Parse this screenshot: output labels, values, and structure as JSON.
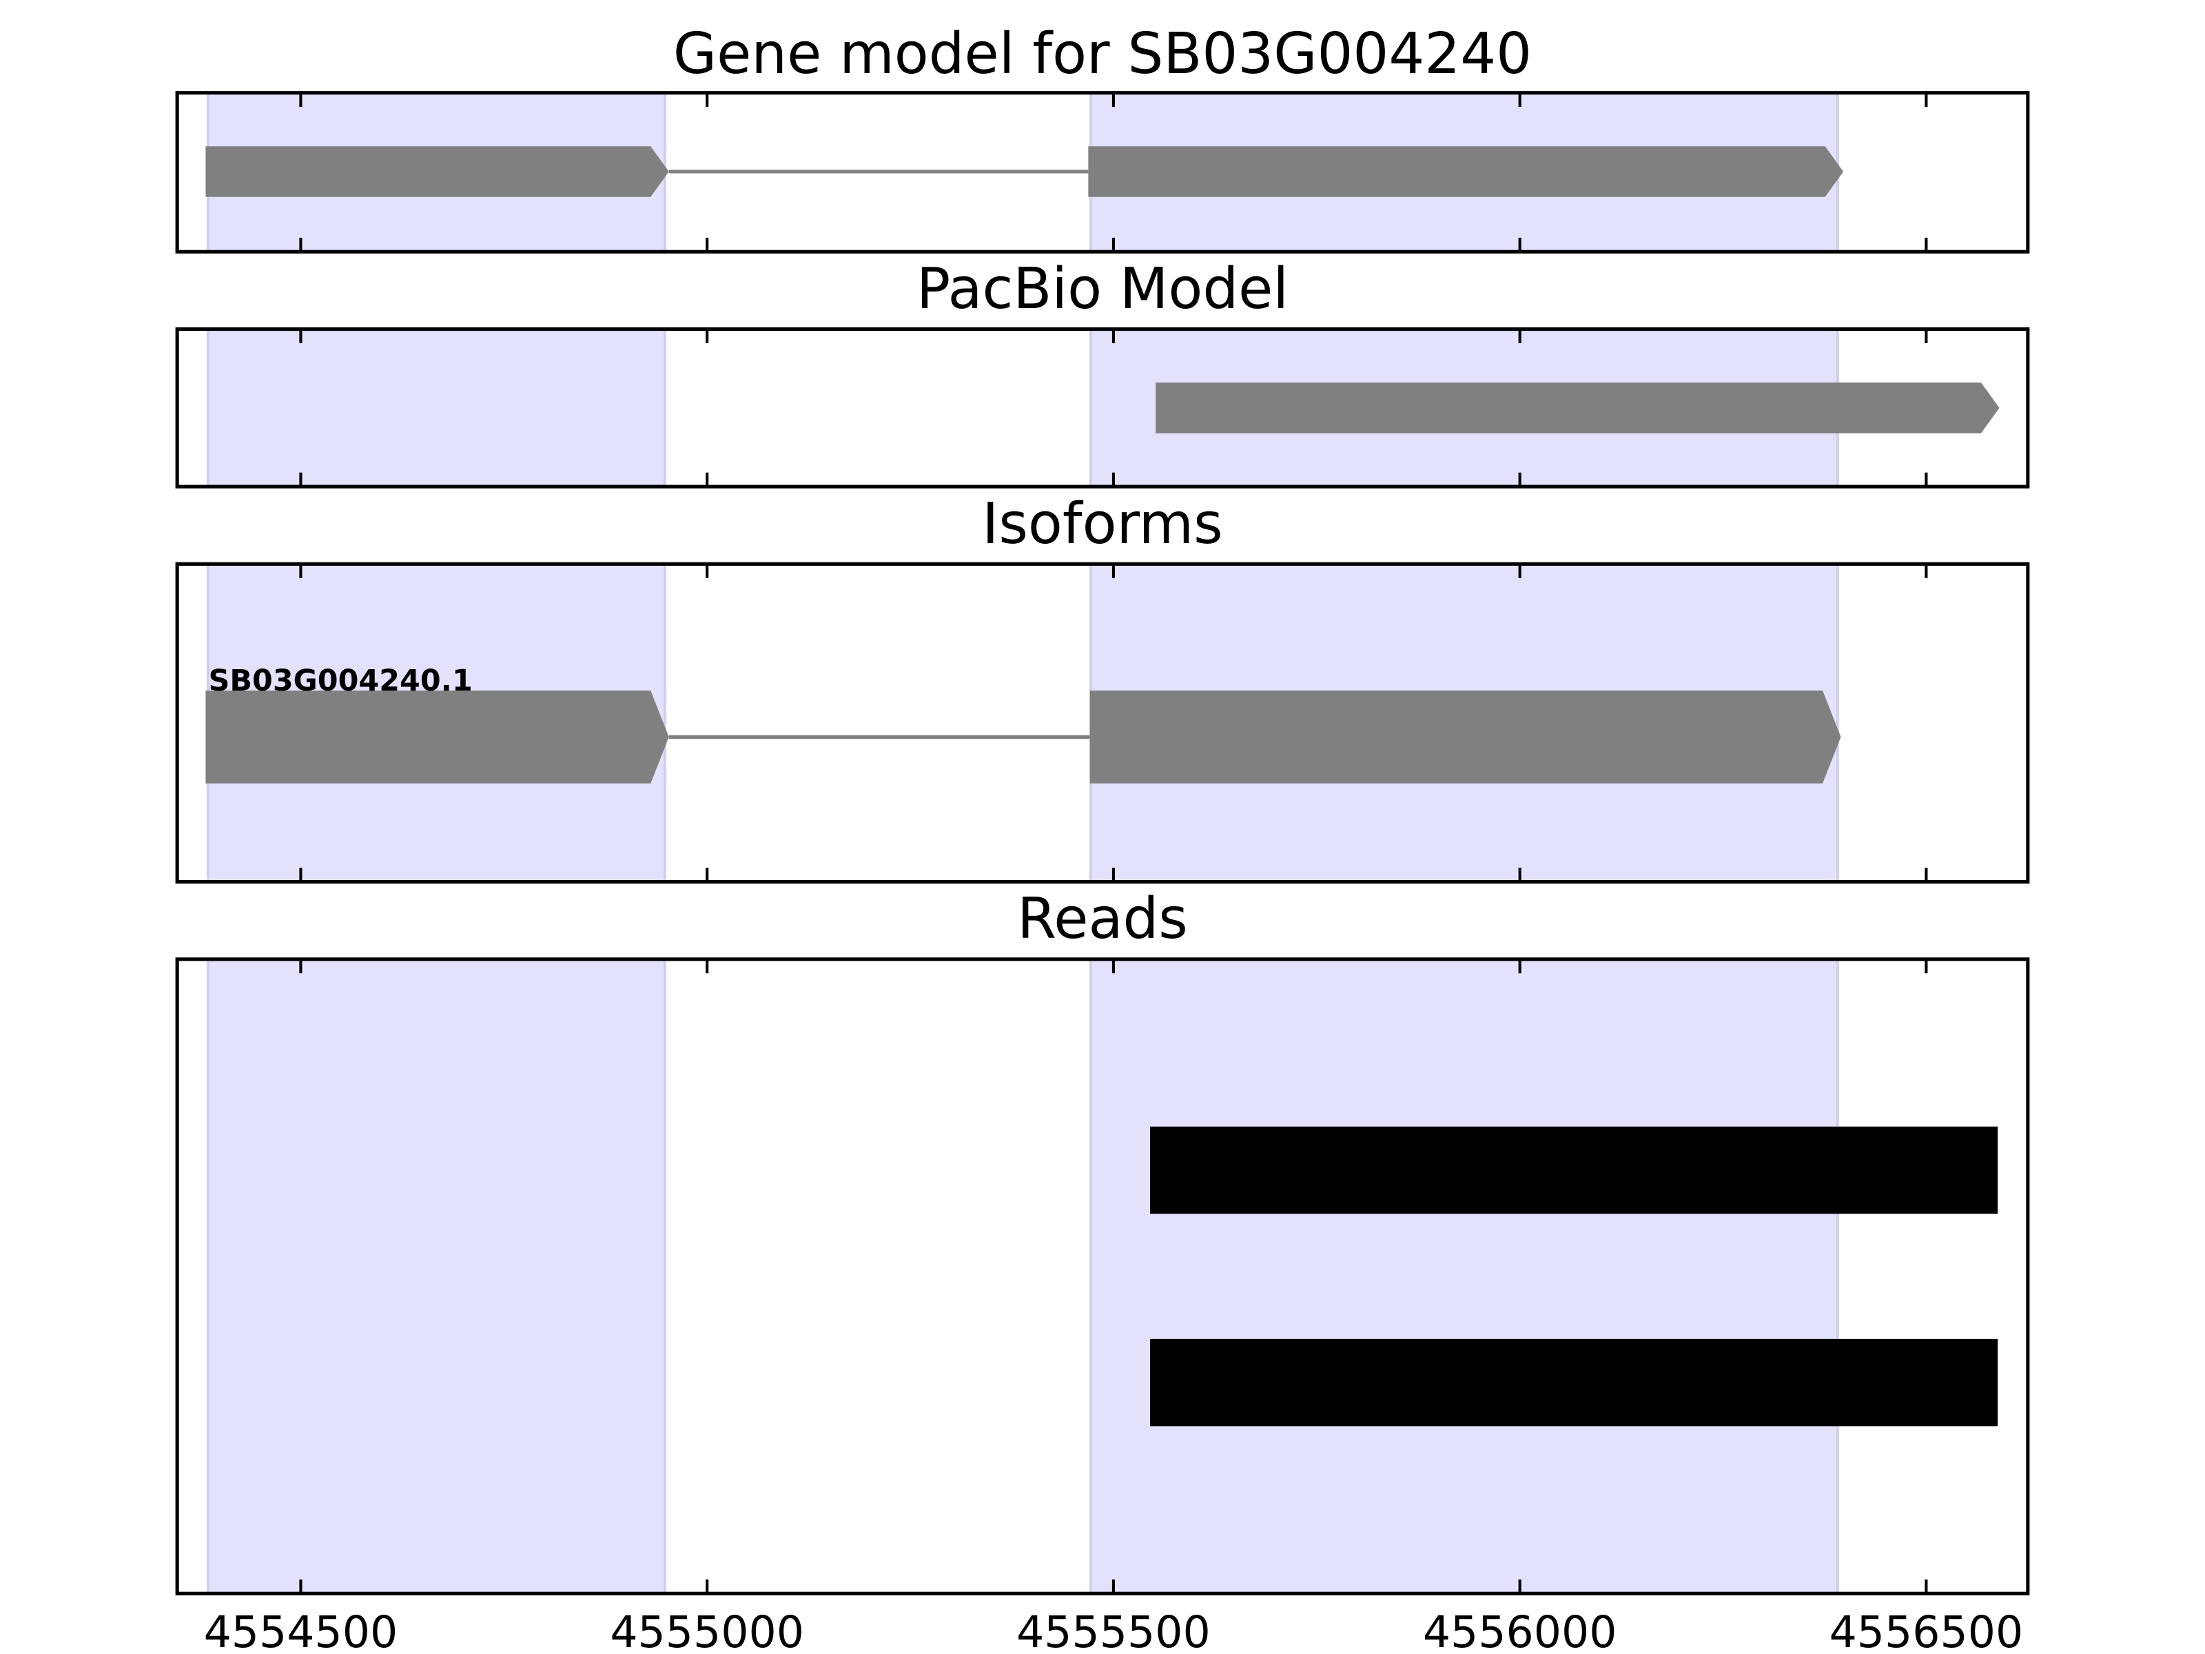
{
  "chart_data": [
    {
      "type": "gene",
      "title": "Gene model for SB03G004240",
      "color": "#808080",
      "highlight_color": "#e2e2fc",
      "highlights": [
        [
          4554386,
          4554948
        ],
        [
          4555472,
          4556391
        ]
      ],
      "features": [
        {
          "exons": [
            [
              4554383,
              4554953
            ],
            [
              4555469,
              4556398
            ]
          ]
        }
      ],
      "xlim": [
        4554348,
        4556625
      ],
      "xticks": [
        4554500,
        4555000,
        4555500,
        4556000,
        4556500
      ]
    },
    {
      "type": "gene",
      "title": "PacBio Model",
      "color": "#808080",
      "highlight_color": "#e2e2fc",
      "highlights": [
        [
          4554386,
          4554948
        ],
        [
          4555472,
          4556391
        ]
      ],
      "features": [
        {
          "exons": [
            [
              4555552,
              4556590
            ]
          ]
        }
      ],
      "xlim": [
        4554348,
        4556625
      ],
      "xticks": [
        4554500,
        4555000,
        4555500,
        4556000,
        4556500
      ]
    },
    {
      "type": "gene",
      "title": "Isoforms",
      "color": "#808080",
      "highlight_color": "#e2e2fc",
      "highlights": [
        [
          4554386,
          4554948
        ],
        [
          4555472,
          4556391
        ]
      ],
      "features": [
        {
          "name": "SB03G004240.1",
          "exons": [
            [
              4554383,
              4554953
            ],
            [
              4555471,
              4556395
            ]
          ]
        }
      ],
      "xlim": [
        4554348,
        4556625
      ],
      "xticks": [
        4554500,
        4555000,
        4555500,
        4556000,
        4556500
      ]
    },
    {
      "type": "reads",
      "title": "Reads",
      "color": "#000000",
      "highlight_color": "#e2e2fc",
      "highlights": [
        [
          4554386,
          4554948
        ],
        [
          4555472,
          4556391
        ]
      ],
      "features": [
        {
          "exons": [
            [
              4555545,
              4556588
            ]
          ]
        },
        {
          "exons": [
            [
              4555545,
              4556588
            ]
          ]
        }
      ],
      "xlim": [
        4554348,
        4556625
      ],
      "xticks": [
        4554500,
        4555000,
        4555500,
        4556000,
        4556500
      ]
    }
  ]
}
